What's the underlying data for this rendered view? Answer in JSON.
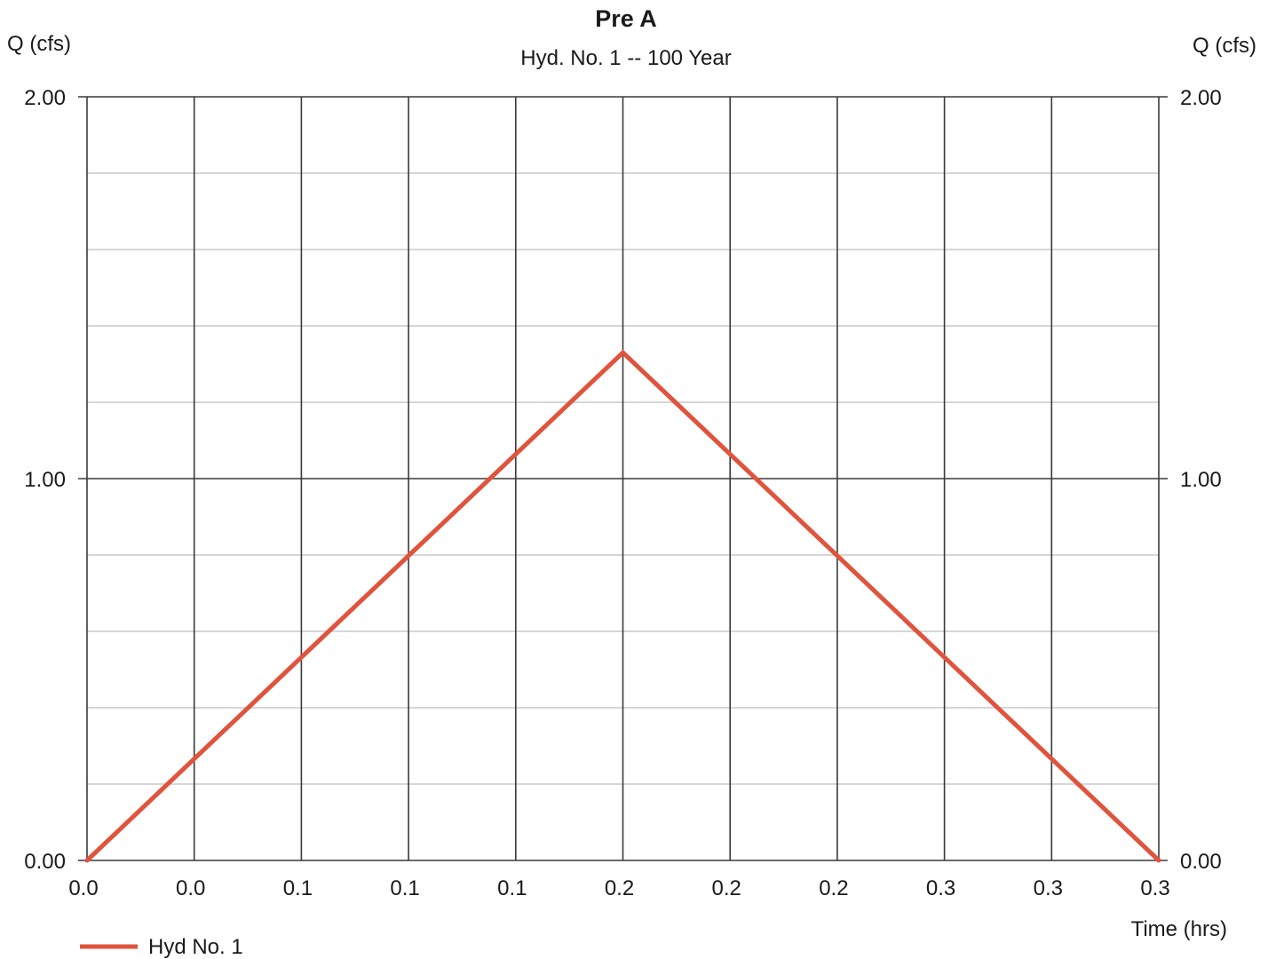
{
  "chart_data": {
    "type": "line",
    "title": "Pre A",
    "subtitle": "Hyd. No. 1 -- 100 Year",
    "ylabel_left": "Q (cfs)",
    "ylabel_right": "Q (cfs)",
    "xlabel": "Time (hrs)",
    "ylim": [
      0,
      2
    ],
    "xlim": [
      0,
      0.3
    ],
    "y_ticks": [
      "0.00",
      "1.00",
      "2.00"
    ],
    "x_ticks": [
      "0.0",
      "0.0",
      "0.1",
      "0.1",
      "0.1",
      "0.2",
      "0.2",
      "0.2",
      "0.3",
      "0.3",
      "0.3"
    ],
    "grid": true,
    "legend_position": "bottom-left",
    "series": [
      {
        "name": "Hyd No. 1",
        "color": "#e0533d",
        "x": [
          0.0,
          0.15,
          0.3
        ],
        "values": [
          0.0,
          1.33,
          0.0
        ]
      }
    ]
  }
}
